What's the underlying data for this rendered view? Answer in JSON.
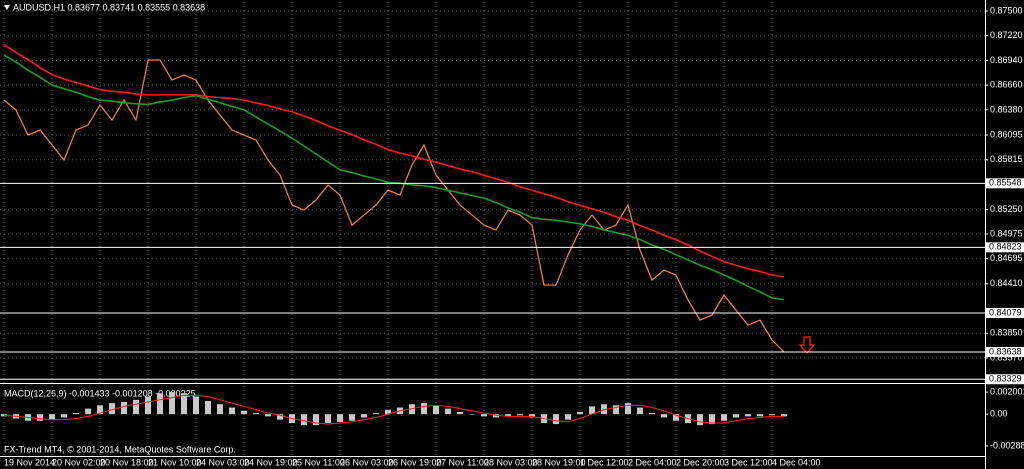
{
  "chart_data": [
    {
      "type": "line",
      "title": "AUDUSD,H1  0.83677 0.83741 0.83555 0.83638",
      "footer": "FX-Trend MT4, © 2001-2014, MetaQuotes Software Corp.",
      "categories": [
        "19 Nov 2014",
        null,
        null,
        null,
        "20 Nov 02:00",
        null,
        null,
        null,
        "20 Nov 18:00",
        null,
        null,
        null,
        "21 Nov 10:00",
        null,
        null,
        null,
        "24 Nov 03:00",
        null,
        null,
        null,
        "24 Nov 19:00",
        null,
        null,
        null,
        "25 Nov 11:00",
        null,
        null,
        null,
        "26 Nov 03:00",
        null,
        null,
        null,
        "26 Nov 19:00",
        null,
        null,
        null,
        "27 Nov 11:00",
        null,
        null,
        null,
        "28 Nov 03:00",
        null,
        null,
        null,
        "28 Nov 19:00",
        null,
        null,
        null,
        "1 Dec 12:00",
        null,
        null,
        null,
        "2 Dec 04:00",
        null,
        null,
        null,
        "2 Dec 20:00",
        null,
        null,
        null,
        "3 Dec 12:00",
        null,
        null,
        null,
        "4 Dec 04:00",
        null
      ],
      "series": [
        {
          "color": "#f5883a",
          "values": [
            0.86492,
            0.86378,
            0.86095,
            0.86152,
            0.85982,
            0.85812,
            0.86152,
            0.86208,
            0.86435,
            0.86265,
            0.86492,
            0.86265,
            0.86945,
            0.86945,
            0.86718,
            0.86775,
            0.86718,
            0.86492,
            0.86322,
            0.86152,
            0.86095,
            0.86038,
            0.85812,
            0.85642,
            0.85302,
            0.85245,
            0.85359,
            0.85529,
            0.85415,
            0.85075,
            0.85189,
            0.85302,
            0.85472,
            0.85415,
            0.85755,
            0.85982,
            0.85642,
            0.85472,
            0.85302,
            0.85189,
            0.85075,
            0.85019,
            0.85245,
            0.85189,
            0.85075,
            0.84396,
            0.84396,
            0.84736,
            0.85019,
            0.85189,
            0.85019,
            0.85075,
            0.85302,
            0.84792,
            0.84452,
            0.84566,
            0.84509,
            0.84226,
            0.83999,
            0.84056,
            0.84282,
            0.84112,
            0.83942,
            0.83999,
            0.83772,
            0.83638
          ]
        },
        {
          "color": "#ff1a1a",
          "values": [
            0.8712,
            0.8703,
            0.8695,
            0.8686,
            0.8678,
            0.8673,
            0.8669,
            0.8665,
            0.8661,
            0.8659,
            0.8658,
            0.8656,
            0.8655,
            0.8655,
            0.8655,
            0.8655,
            0.8655,
            0.8653,
            0.8652,
            0.8651,
            0.8649,
            0.8646,
            0.8643,
            0.8639,
            0.8636,
            0.8631,
            0.8626,
            0.862,
            0.8615,
            0.861,
            0.8604,
            0.8599,
            0.8593,
            0.8589,
            0.8586,
            0.8582,
            0.8579,
            0.8575,
            0.8571,
            0.8568,
            0.8564,
            0.856,
            0.8556,
            0.8551,
            0.8547,
            0.8543,
            0.8539,
            0.8534,
            0.853,
            0.8526,
            0.8522,
            0.8517,
            0.8513,
            0.8507,
            0.8502,
            0.8496,
            0.8491,
            0.8485,
            0.8478,
            0.8472,
            0.8466,
            0.8462,
            0.8458,
            0.8455,
            0.8451,
            0.8449
          ]
        },
        {
          "color": "#1f9a2a",
          "values": [
            0.87,
            0.8692,
            0.8683,
            0.8675,
            0.8666,
            0.8662,
            0.8658,
            0.8653,
            0.8649,
            0.8648,
            0.8646,
            0.8645,
            0.8644,
            0.8647,
            0.8649,
            0.8652,
            0.8654,
            0.865,
            0.8646,
            0.8642,
            0.8638,
            0.863,
            0.8622,
            0.8614,
            0.8606,
            0.8597,
            0.8588,
            0.8579,
            0.857,
            0.8567,
            0.8563,
            0.856,
            0.8556,
            0.8555,
            0.8553,
            0.8552,
            0.855,
            0.8547,
            0.8544,
            0.8541,
            0.8538,
            0.8533,
            0.8527,
            0.8522,
            0.8516,
            0.8514,
            0.8513,
            0.8511,
            0.8509,
            0.8506,
            0.8502,
            0.8499,
            0.8496,
            0.8491,
            0.8485,
            0.848,
            0.8474,
            0.8468,
            0.8462,
            0.8457,
            0.8451,
            0.8445,
            0.8438,
            0.8432,
            0.8425,
            0.8423
          ]
        }
      ],
      "ylim": [
        0.83309,
        0.87602
      ],
      "yticks": [
        {
          "value": 0.875,
          "label": "0.87500"
        },
        {
          "value": 0.8722,
          "label": "0.87220"
        },
        {
          "value": 0.8694,
          "label": "0.86940"
        },
        {
          "value": 0.8666,
          "label": "0.86660"
        },
        {
          "value": 0.8638,
          "label": "0.86380"
        },
        {
          "value": 0.86095,
          "label": "0.86095"
        },
        {
          "value": 0.85815,
          "label": "0.85815"
        },
        {
          "value": 0.8525,
          "label": "0.85250"
        },
        {
          "value": 0.84975,
          "label": "0.84975"
        },
        {
          "value": 0.84695,
          "label": "0.84695"
        },
        {
          "value": 0.8441,
          "label": "0.84410"
        },
        {
          "value": 0.8385,
          "label": "0.83850"
        },
        {
          "value": 0.8357,
          "label": "0.83570"
        }
      ],
      "hlines": [
        {
          "value": 0.85548,
          "label": "0.85548"
        },
        {
          "value": 0.84823,
          "label": "0.84823"
        },
        {
          "value": 0.84079,
          "label": "0.84079"
        },
        {
          "value": 0.83638,
          "label": "0.83638"
        },
        {
          "value": 0.83329,
          "label": "0.83329"
        }
      ],
      "grid": true
    },
    {
      "type": "bar",
      "title": "MACD(12,26,9) -0.001433 -0.001208 -0.000225",
      "color": "#c8c8c8",
      "values": [
        -0.0002,
        -0.0004,
        -0.0006,
        -0.0006,
        -0.0005,
        -0.0003,
        0.0001,
        0.0005,
        0.0008,
        0.001,
        0.0011,
        0.0013,
        0.0016,
        0.0019,
        0.002,
        0.0019,
        0.0016,
        0.0012,
        0.0009,
        0.0006,
        0.0003,
        0.0001,
        -0.0002,
        -0.0005,
        -0.0008,
        -0.001,
        -0.001,
        -0.0008,
        -0.0007,
        -0.0006,
        -0.0003,
        0.0001,
        0.0004,
        0.0006,
        0.0009,
        0.001,
        0.0008,
        0.0005,
        0.0002,
        0,
        -0.0002,
        -0.0003,
        -0.0002,
        -0.0001,
        -0.0003,
        -0.0008,
        -0.0009,
        -0.0005,
        0.0002,
        0.0007,
        0.0009,
        0.0008,
        0.001,
        0.0006,
        0.0001,
        -0.0003,
        -0.0006,
        -0.0008,
        -0.001,
        -0.0009,
        -0.0006,
        -0.0003,
        -0.0002,
        -0.0002,
        -0.0001,
        -0.0002
      ],
      "series": [
        {
          "color": "#ff2020",
          "values": [
            -0.0001,
            -0.0002,
            -0.0003,
            -0.0004,
            -0.0005,
            -0.0005,
            -0.0004,
            -0.0002,
            0.0001,
            0.0004,
            0.0007,
            0.0009,
            0.0011,
            0.0013,
            0.0015,
            0.0017,
            0.0017,
            0.0016,
            0.0013,
            0.001,
            0.0007,
            0.0004,
            0.0001,
            -0.0001,
            -0.0004,
            -0.0006,
            -0.0008,
            -0.0009,
            -0.0008,
            -0.0007,
            -0.0005,
            -0.0003,
            0,
            0.0003,
            0.0005,
            0.0007,
            0.0008,
            0.0007,
            0.0005,
            0.0003,
            0.0001,
            -0.0001,
            -0.0002,
            -0.0002,
            -0.0002,
            -0.0004,
            -0.0006,
            -0.0007,
            -0.0004,
            0,
            0.0004,
            0.0006,
            0.0008,
            0.0008,
            0.0006,
            0.0003,
            -0.0001,
            -0.0004,
            -0.0007,
            -0.0008,
            -0.0008,
            -0.0006,
            -0.0004,
            -0.0003,
            -0.0002,
            -0.0002
          ]
        }
      ],
      "ylim": [
        -0.0037,
        0.00255
      ],
      "yticks": [
        0.002001,
        {
          "value": 0,
          "label": "0.00"
        },
        -0.002882
      ]
    }
  ]
}
